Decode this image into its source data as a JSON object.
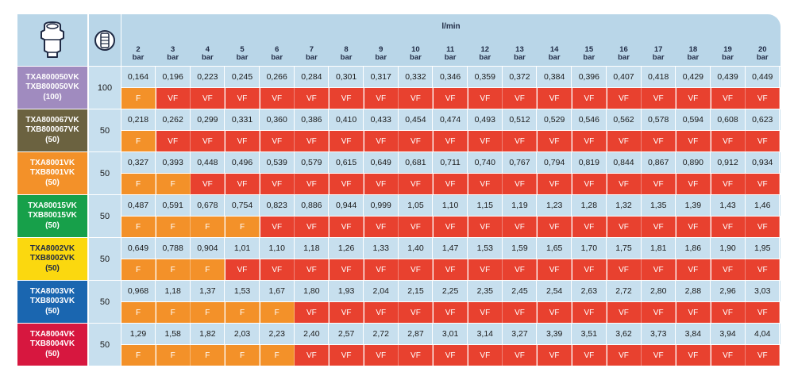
{
  "header": {
    "unit": "l/min",
    "nozzle_icon": "nozzle-icon",
    "package_icon": "package-icon",
    "pressures": [
      {
        "value": "2",
        "unit": "bar"
      },
      {
        "value": "3",
        "unit": "bar"
      },
      {
        "value": "4",
        "unit": "bar"
      },
      {
        "value": "5",
        "unit": "bar"
      },
      {
        "value": "6",
        "unit": "bar"
      },
      {
        "value": "7",
        "unit": "bar"
      },
      {
        "value": "8",
        "unit": "bar"
      },
      {
        "value": "9",
        "unit": "bar"
      },
      {
        "value": "10",
        "unit": "bar"
      },
      {
        "value": "11",
        "unit": "bar"
      },
      {
        "value": "12",
        "unit": "bar"
      },
      {
        "value": "13",
        "unit": "bar"
      },
      {
        "value": "14",
        "unit": "bar"
      },
      {
        "value": "15",
        "unit": "bar"
      },
      {
        "value": "16",
        "unit": "bar"
      },
      {
        "value": "17",
        "unit": "bar"
      },
      {
        "value": "18",
        "unit": "bar"
      },
      {
        "value": "19",
        "unit": "bar"
      },
      {
        "value": "20",
        "unit": "bar"
      }
    ]
  },
  "colors": {
    "header_bg": "#b9d6e8",
    "value_bg": "#c7dfee",
    "F": "#f39129",
    "VF": "#e8412f"
  },
  "rows": [
    {
      "name_a": "TXA800050VK",
      "name_b": "TXB800050VK",
      "pack": "(100)",
      "qty": "100",
      "color": "#a08bbf",
      "values": [
        "0,164",
        "0,196",
        "0,223",
        "0,245",
        "0,266",
        "0,284",
        "0,301",
        "0,317",
        "0,332",
        "0,346",
        "0,359",
        "0,372",
        "0,384",
        "0,396",
        "0,407",
        "0,418",
        "0,429",
        "0,439",
        "0,449"
      ],
      "drops": [
        "F",
        "VF",
        "VF",
        "VF",
        "VF",
        "VF",
        "VF",
        "VF",
        "VF",
        "VF",
        "VF",
        "VF",
        "VF",
        "VF",
        "VF",
        "VF",
        "VF",
        "VF",
        "VF"
      ]
    },
    {
      "name_a": "TXA800067VK",
      "name_b": "TXB800067VK",
      "pack": "(50)",
      "qty": "50",
      "color": "#6b6240",
      "values": [
        "0,218",
        "0,262",
        "0,299",
        "0,331",
        "0,360",
        "0,386",
        "0,410",
        "0,433",
        "0,454",
        "0,474",
        "0,493",
        "0,512",
        "0,529",
        "0,546",
        "0,562",
        "0,578",
        "0,594",
        "0,608",
        "0,623"
      ],
      "drops": [
        "F",
        "VF",
        "VF",
        "VF",
        "VF",
        "VF",
        "VF",
        "VF",
        "VF",
        "VF",
        "VF",
        "VF",
        "VF",
        "VF",
        "VF",
        "VF",
        "VF",
        "VF",
        "VF"
      ]
    },
    {
      "name_a": "TXA8001VK",
      "name_b": "TXB8001VK",
      "pack": "(50)",
      "qty": "50",
      "color": "#f39129",
      "values": [
        "0,327",
        "0,393",
        "0,448",
        "0,496",
        "0,539",
        "0,579",
        "0,615",
        "0,649",
        "0,681",
        "0,711",
        "0,740",
        "0,767",
        "0,794",
        "0,819",
        "0,844",
        "0,867",
        "0,890",
        "0,912",
        "0,934"
      ],
      "drops": [
        "F",
        "F",
        "VF",
        "VF",
        "VF",
        "VF",
        "VF",
        "VF",
        "VF",
        "VF",
        "VF",
        "VF",
        "VF",
        "VF",
        "VF",
        "VF",
        "VF",
        "VF",
        "VF"
      ]
    },
    {
      "name_a": "TXA80015VK",
      "name_b": "TXB80015VK",
      "pack": "(50)",
      "qty": "50",
      "color": "#17a04a",
      "values": [
        "0,487",
        "0,591",
        "0,678",
        "0,754",
        "0,823",
        "0,886",
        "0,944",
        "0,999",
        "1,05",
        "1,10",
        "1,15",
        "1,19",
        "1,23",
        "1,28",
        "1,32",
        "1,35",
        "1,39",
        "1,43",
        "1,46"
      ],
      "drops": [
        "F",
        "F",
        "F",
        "F",
        "VF",
        "VF",
        "VF",
        "VF",
        "VF",
        "VF",
        "VF",
        "VF",
        "VF",
        "VF",
        "VF",
        "VF",
        "VF",
        "VF",
        "VF"
      ]
    },
    {
      "name_a": "TXA8002VK",
      "name_b": "TXB8002VK",
      "pack": "(50)",
      "qty": "50",
      "color": "#fbd80f",
      "values": [
        "0,649",
        "0,788",
        "0,904",
        "1,01",
        "1,10",
        "1,18",
        "1,26",
        "1,33",
        "1,40",
        "1,47",
        "1,53",
        "1,59",
        "1,65",
        "1,70",
        "1,75",
        "1,81",
        "1,86",
        "1,90",
        "1,95"
      ],
      "drops": [
        "F",
        "F",
        "F",
        "VF",
        "VF",
        "VF",
        "VF",
        "VF",
        "VF",
        "VF",
        "VF",
        "VF",
        "VF",
        "VF",
        "VF",
        "VF",
        "VF",
        "VF",
        "VF"
      ]
    },
    {
      "name_a": "TXA8003VK",
      "name_b": "TXB8003VK",
      "pack": "(50)",
      "qty": "50",
      "color": "#1a66b0",
      "values": [
        "0,968",
        "1,18",
        "1,37",
        "1,53",
        "1,67",
        "1,80",
        "1,93",
        "2,04",
        "2,15",
        "2,25",
        "2,35",
        "2,45",
        "2,54",
        "2,63",
        "2,72",
        "2,80",
        "2,88",
        "2,96",
        "3,03"
      ],
      "drops": [
        "F",
        "F",
        "F",
        "F",
        "F",
        "VF",
        "VF",
        "VF",
        "VF",
        "VF",
        "VF",
        "VF",
        "VF",
        "VF",
        "VF",
        "VF",
        "VF",
        "VF",
        "VF"
      ]
    },
    {
      "name_a": "TXA8004VK",
      "name_b": "TXB8004VK",
      "pack": "(50)",
      "qty": "50",
      "color": "#d7173f",
      "values": [
        "1,29",
        "1,58",
        "1,82",
        "2,03",
        "2,23",
        "2,40",
        "2,57",
        "2,72",
        "2,87",
        "3,01",
        "3,14",
        "3,27",
        "3,39",
        "3,51",
        "3,62",
        "3,73",
        "3,84",
        "3,94",
        "4,04"
      ],
      "drops": [
        "F",
        "F",
        "F",
        "F",
        "F",
        "VF",
        "VF",
        "VF",
        "VF",
        "VF",
        "VF",
        "VF",
        "VF",
        "VF",
        "VF",
        "VF",
        "VF",
        "VF",
        "VF"
      ]
    }
  ]
}
